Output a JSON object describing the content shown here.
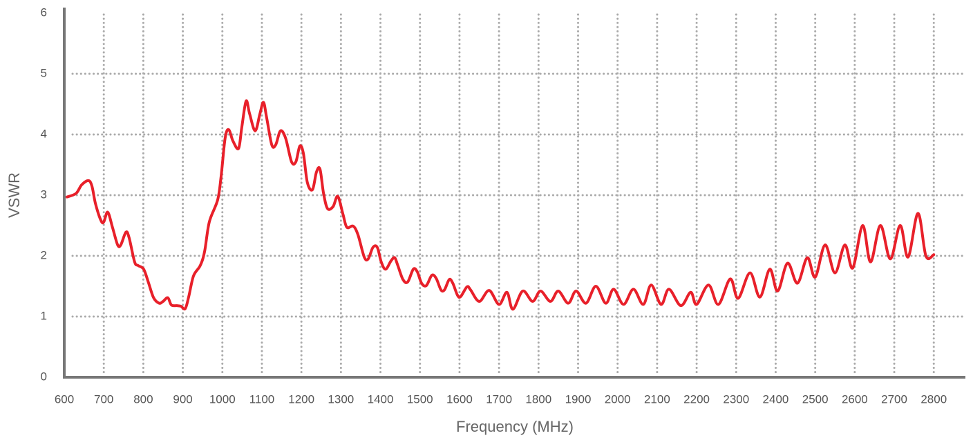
{
  "chart_data": {
    "type": "line",
    "x_label": "Frequency (MHz)",
    "y_label": "VSWR",
    "color": "#e8202a",
    "grid": true,
    "xlim": [
      600,
      2880
    ],
    "ylim": [
      0,
      6
    ],
    "xticks": [
      600,
      700,
      800,
      900,
      1000,
      1100,
      1200,
      1300,
      1400,
      1500,
      1600,
      1700,
      1800,
      1900,
      2000,
      2100,
      2200,
      2300,
      2400,
      2500,
      2600,
      2700,
      2800
    ],
    "yticks": [
      0,
      1,
      2,
      3,
      4,
      5,
      6
    ],
    "x": [
      607,
      630,
      644,
      661,
      670,
      679,
      693,
      700,
      710,
      722,
      735,
      743,
      756,
      764,
      778,
      787,
      801,
      813,
      826,
      840,
      850,
      862,
      871,
      885,
      895,
      906,
      915,
      927,
      944,
      955,
      967,
      988,
      997,
      1007,
      1016,
      1027,
      1041,
      1049,
      1060,
      1069,
      1083,
      1095,
      1104,
      1112,
      1125,
      1135,
      1147,
      1160,
      1175,
      1186,
      1196,
      1205,
      1215,
      1228,
      1238,
      1247,
      1256,
      1266,
      1280,
      1292,
      1305,
      1315,
      1331,
      1343,
      1359,
      1369,
      1381,
      1392,
      1402,
      1413,
      1427,
      1436,
      1444,
      1457,
      1469,
      1483,
      1493,
      1504,
      1516,
      1530,
      1541,
      1553,
      1562,
      1574,
      1583,
      1595,
      1603,
      1619,
      1628,
      1650,
      1675,
      1700,
      1720,
      1735,
      1760,
      1785,
      1805,
      1830,
      1850,
      1875,
      1895,
      1920,
      1945,
      1970,
      1990,
      2015,
      2040,
      2065,
      2085,
      2110,
      2130,
      2160,
      2185,
      2200,
      2230,
      2255,
      2285,
      2305,
      2335,
      2360,
      2385,
      2405,
      2430,
      2455,
      2480,
      2500,
      2525,
      2550,
      2575,
      2595,
      2620,
      2640,
      2665,
      2690,
      2715,
      2735,
      2760,
      2780,
      2800
    ],
    "values": [
      2.97,
      3.03,
      3.17,
      3.24,
      3.15,
      2.86,
      2.58,
      2.56,
      2.72,
      2.47,
      2.18,
      2.18,
      2.39,
      2.3,
      1.9,
      1.84,
      1.78,
      1.56,
      1.31,
      1.22,
      1.25,
      1.31,
      1.19,
      1.18,
      1.17,
      1.13,
      1.33,
      1.67,
      1.84,
      2.07,
      2.56,
      2.92,
      3.32,
      3.94,
      4.08,
      3.89,
      3.77,
      4.11,
      4.55,
      4.34,
      4.06,
      4.34,
      4.53,
      4.28,
      3.83,
      3.83,
      4.06,
      3.94,
      3.55,
      3.55,
      3.81,
      3.69,
      3.21,
      3.09,
      3.38,
      3.43,
      3.03,
      2.78,
      2.81,
      2.98,
      2.69,
      2.47,
      2.49,
      2.35,
      1.98,
      1.95,
      2.14,
      2.14,
      1.9,
      1.78,
      1.92,
      1.97,
      1.84,
      1.61,
      1.57,
      1.78,
      1.74,
      1.55,
      1.51,
      1.68,
      1.63,
      1.44,
      1.44,
      1.61,
      1.55,
      1.35,
      1.33,
      1.49,
      1.44,
      1.25,
      1.43,
      1.2,
      1.4,
      1.12,
      1.42,
      1.25,
      1.42,
      1.25,
      1.42,
      1.22,
      1.42,
      1.22,
      1.5,
      1.22,
      1.45,
      1.2,
      1.45,
      1.2,
      1.52,
      1.2,
      1.45,
      1.18,
      1.4,
      1.2,
      1.52,
      1.2,
      1.62,
      1.3,
      1.72,
      1.32,
      1.78,
      1.42,
      1.88,
      1.55,
      1.97,
      1.65,
      2.18,
      1.72,
      2.18,
      1.8,
      2.5,
      1.9,
      2.5,
      1.95,
      2.5,
      1.98,
      2.7,
      2.0,
      2.02
    ]
  }
}
